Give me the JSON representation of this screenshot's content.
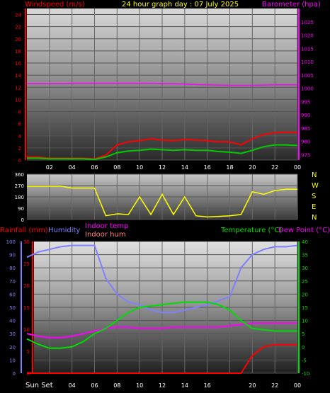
{
  "header": {
    "windspeed_label": "Windspeed (m/s)",
    "title": "24 hour graph day : 07 July 2025",
    "barometer_label": "Barometer (hpa)",
    "rainfall_label": "Rainfall (mm)",
    "humidity_label": "Humidity",
    "indoor_temp_label": "Indoor temp",
    "indoor_hum_label": "Indoor hum",
    "temperature_label": "Temperature (°C)",
    "dewpoint_label": "Dew Point (°C)",
    "sunset_label": "Sun Set"
  },
  "colors": {
    "windspeed": "#ff0000",
    "gust": "#00cc00",
    "barometer": "#ff00ff",
    "direction": "#ffff00",
    "humidity": "#8080ff",
    "indoor_temp": "#ff00ff",
    "temperature": "#00dd00",
    "rain": "#ff0000",
    "title": "#ffff00",
    "dewpoint": "#ff00ff"
  },
  "chart_data": [
    {
      "type": "line",
      "x": [
        0,
        1,
        2,
        3,
        4,
        5,
        6,
        7,
        8,
        9,
        10,
        11,
        12,
        13,
        14,
        15,
        16,
        17,
        18,
        19,
        20,
        21,
        22,
        23,
        24
      ],
      "x_tick_labels": [
        "02",
        "04",
        "06",
        "08",
        "10",
        "12",
        "14",
        "16",
        "18",
        "20",
        "22",
        "00"
      ],
      "y_left_ticks": [
        0,
        2,
        4,
        6,
        8,
        10,
        12,
        14,
        16,
        18,
        20,
        22,
        24
      ],
      "y_right_ticks": [
        975,
        980,
        985,
        990,
        995,
        1000,
        1005,
        1010,
        1015,
        1020,
        1025
      ],
      "ylim_left": [
        0,
        25
      ],
      "ylim_right": [
        973,
        1030
      ],
      "series": [
        {
          "key": "windspeed",
          "values": [
            0.5,
            0.5,
            0.3,
            0.3,
            0.3,
            0.3,
            0.2,
            0.8,
            2.5,
            3.0,
            3.2,
            3.5,
            3.3,
            3.2,
            3.4,
            3.3,
            3.2,
            3.0,
            3.0,
            2.5,
            3.5,
            4.2,
            4.5,
            4.6,
            4.5
          ]
        },
        {
          "key": "gust",
          "values": [
            0.3,
            0.3,
            0.2,
            0.2,
            0.2,
            0.2,
            0.1,
            0.5,
            1.2,
            1.5,
            1.6,
            1.8,
            1.7,
            1.6,
            1.7,
            1.6,
            1.6,
            1.4,
            1.3,
            1.1,
            1.6,
            2.2,
            2.5,
            2.5,
            2.4
          ]
        },
        {
          "key": "barometer",
          "values": [
            1001.8,
            1001.8,
            1001.8,
            1001.8,
            1001.9,
            1001.9,
            1001.9,
            1001.9,
            1001.9,
            1001.9,
            1001.9,
            1001.9,
            1001.8,
            1001.7,
            1001.6,
            1001.4,
            1001.3,
            1001.2,
            1001.1,
            1001.1,
            1001.1,
            1001.2,
            1001.3,
            1001.3,
            1001.3
          ]
        }
      ]
    },
    {
      "type": "line",
      "y_ticks": [
        0,
        90,
        180,
        270,
        360
      ],
      "side_labels": [
        "N",
        "W",
        "S",
        "E",
        "N"
      ],
      "ylim": [
        0,
        360
      ],
      "x": [
        0,
        1,
        2,
        3,
        4,
        5,
        6,
        7,
        8,
        9,
        10,
        11,
        12,
        13,
        14,
        15,
        16,
        17,
        18,
        19,
        20,
        21,
        22,
        23,
        24
      ],
      "series": [
        {
          "key": "direction",
          "values": [
            265,
            265,
            265,
            265,
            250,
            250,
            250,
            30,
            45,
            40,
            180,
            40,
            200,
            40,
            180,
            30,
            20,
            25,
            30,
            40,
            220,
            200,
            230,
            240,
            240
          ]
        }
      ]
    },
    {
      "type": "line",
      "x": [
        0,
        1,
        2,
        3,
        4,
        5,
        6,
        7,
        8,
        9,
        10,
        11,
        12,
        13,
        14,
        15,
        16,
        17,
        18,
        19,
        20,
        21,
        22,
        23,
        24
      ],
      "y_left_ticks": [
        0,
        10,
        20,
        30,
        40,
        50,
        60,
        70,
        80,
        90,
        100
      ],
      "y_rain_ticks": [
        0,
        5,
        10,
        15,
        20,
        25,
        30
      ],
      "y_right_ticks": [
        -10,
        -5,
        0,
        5,
        10,
        15,
        20,
        25,
        30,
        35,
        40
      ],
      "ylim_left": [
        0,
        100
      ],
      "ylim_right": [
        -10,
        40
      ],
      "series": [
        {
          "key": "humidity",
          "axis": "left",
          "values": [
            88,
            92,
            94,
            96,
            97,
            97,
            97,
            72,
            60,
            54,
            52,
            48,
            46,
            46,
            48,
            50,
            52,
            55,
            58,
            80,
            90,
            94,
            96,
            96,
            97
          ]
        },
        {
          "key": "indoor_temp",
          "axis": "left",
          "values": [
            30,
            28,
            27,
            27,
            28,
            30,
            32,
            34,
            35,
            35,
            34,
            34,
            34,
            35,
            35,
            35,
            35,
            35,
            36,
            37,
            38,
            38,
            38,
            38,
            38
          ]
        },
        {
          "key": "temperature",
          "axis": "right",
          "values": [
            3,
            1,
            -0.5,
            -0.5,
            0,
            2,
            5,
            7,
            10,
            13,
            15,
            15.5,
            16,
            16.5,
            17,
            17,
            17,
            16,
            14,
            10,
            7,
            6.5,
            6,
            6,
            6
          ]
        },
        {
          "key": "rain",
          "axis": "rain",
          "values": [
            0,
            0,
            0,
            0,
            0,
            0,
            0,
            0,
            0,
            0,
            0,
            0,
            0,
            0,
            0,
            0,
            0,
            0,
            0,
            0,
            4,
            6,
            6.5,
            6.5,
            6.5
          ]
        }
      ]
    }
  ]
}
